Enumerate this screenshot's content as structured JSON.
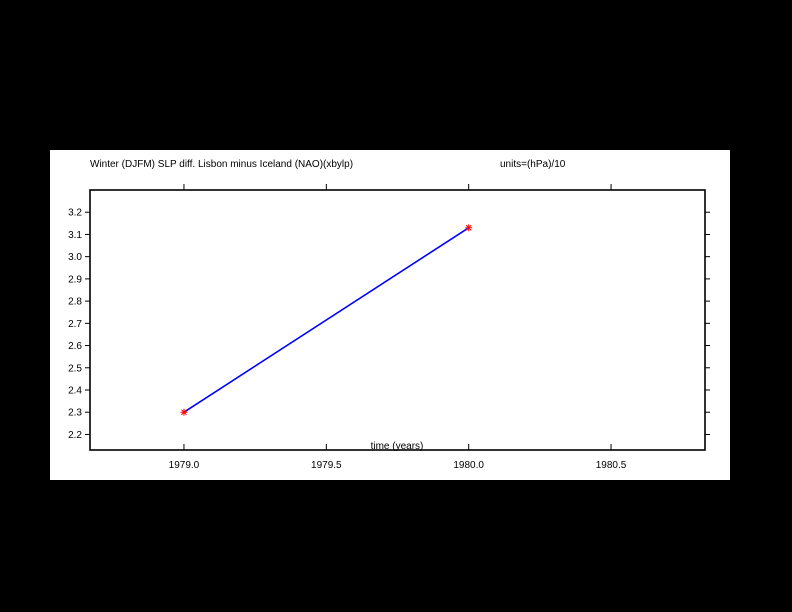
{
  "colors": {
    "background": "#000000",
    "panel": "#ffffff",
    "axes": "#000000",
    "line": "#0000ff",
    "marker": "#ff0000"
  },
  "chart_data": {
    "type": "line",
    "title": "Winter (DJFM) SLP diff. Lisbon minus Iceland (NAO)(xbylp)",
    "units_label": "units=(hPa)/10",
    "xlabel": "time (years)",
    "ylabel": "",
    "xlim": [
      1978.67,
      1980.83
    ],
    "ylim": [
      2.13,
      3.3
    ],
    "x_ticks": [
      1979.0,
      1979.5,
      1980.0,
      1980.5
    ],
    "x_tick_labels": [
      "1979.0",
      "1979.5",
      "1980.0",
      "1980.5"
    ],
    "y_ticks": [
      2.2,
      2.3,
      2.4,
      2.5,
      2.6,
      2.7,
      2.8,
      2.9,
      3.0,
      3.1,
      3.2
    ],
    "y_tick_labels": [
      "2.2",
      "2.3",
      "2.4",
      "2.5",
      "2.6",
      "2.7",
      "2.8",
      "2.9",
      "3.0",
      "3.1",
      "3.2"
    ],
    "grid": false,
    "series": [
      {
        "x": [
          1979.0,
          1980.0
        ],
        "values": [
          2.3,
          3.13
        ],
        "marker": "asterisk"
      }
    ]
  }
}
